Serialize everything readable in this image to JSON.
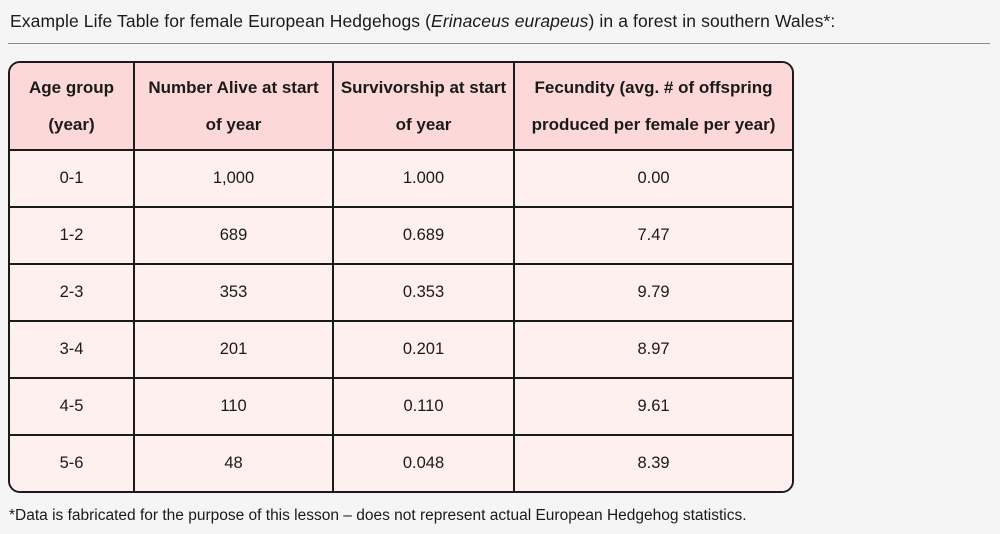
{
  "page": {
    "title_prefix": "Example Life Table for female European Hedgehogs (",
    "title_species": "Erinaceus eurapeus",
    "title_suffix": ") in a forest in southern Wales*:",
    "footnote": "*Data is fabricated for the purpose of this lesson – does not represent actual European Hedgehog statistics."
  },
  "colors": {
    "page_background": "#f5f5f5",
    "header_background": "#fcd8d8",
    "cell_background": "#fdf0ef",
    "table_border": "#1a1a1a",
    "divider_line": "#8c8c8c",
    "text": "#1a1a1a"
  },
  "table": {
    "columns": [
      {
        "label": "Age group (year)",
        "line1": "Age group",
        "line2": "(year)"
      },
      {
        "label": "Number Alive at start of year",
        "line1": "Number Alive at start",
        "line2": "of year"
      },
      {
        "label": "Survivorship at start of year",
        "line1": "Survivorship at start",
        "line2": "of year"
      },
      {
        "label": "Fecundity (avg. # of offspring produced per female per year)",
        "line1": "Fecundity (avg. # of offspring",
        "line2": "produced per female per year)"
      }
    ],
    "rows": [
      {
        "age_group": "0-1",
        "number_alive": "1,000",
        "survivorship": "1.000",
        "fecundity": "0.00"
      },
      {
        "age_group": "1-2",
        "number_alive": "689",
        "survivorship": "0.689",
        "fecundity": "7.47"
      },
      {
        "age_group": "2-3",
        "number_alive": "353",
        "survivorship": "0.353",
        "fecundity": "9.79"
      },
      {
        "age_group": "3-4",
        "number_alive": "201",
        "survivorship": "0.201",
        "fecundity": "8.97"
      },
      {
        "age_group": "4-5",
        "number_alive": "110",
        "survivorship": "0.110",
        "fecundity": "9.61"
      },
      {
        "age_group": "5-6",
        "number_alive": "48",
        "survivorship": "0.048",
        "fecundity": "8.39"
      }
    ]
  }
}
